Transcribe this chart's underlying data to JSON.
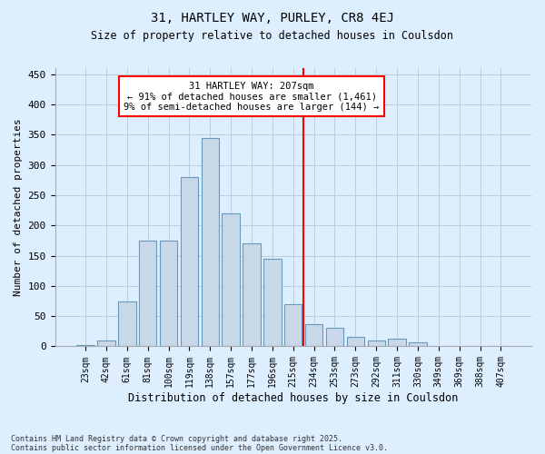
{
  "title1": "31, HARTLEY WAY, PURLEY, CR8 4EJ",
  "title2": "Size of property relative to detached houses in Coulsdon",
  "xlabel": "Distribution of detached houses by size in Coulsdon",
  "ylabel": "Number of detached properties",
  "categories": [
    "23sqm",
    "42sqm",
    "61sqm",
    "81sqm",
    "100sqm",
    "119sqm",
    "138sqm",
    "157sqm",
    "177sqm",
    "196sqm",
    "215sqm",
    "234sqm",
    "253sqm",
    "273sqm",
    "292sqm",
    "311sqm",
    "330sqm",
    "349sqm",
    "369sqm",
    "388sqm",
    "407sqm"
  ],
  "values": [
    2,
    10,
    75,
    175,
    175,
    280,
    345,
    220,
    170,
    145,
    70,
    37,
    30,
    15,
    10,
    12,
    6,
    1,
    0,
    0,
    0
  ],
  "bar_color": "#c8d8e8",
  "bar_edge_color": "#6699bb",
  "grid_color": "#bbccdd",
  "bg_color": "#ddeeff",
  "red_line_x": 10.5,
  "annotation_text": "31 HARTLEY WAY: 207sqm\n← 91% of detached houses are smaller (1,461)\n9% of semi-detached houses are larger (144) →",
  "footnote1": "Contains HM Land Registry data © Crown copyright and database right 2025.",
  "footnote2": "Contains public sector information licensed under the Open Government Licence v3.0.",
  "ylim": [
    0,
    460
  ],
  "yticks": [
    0,
    50,
    100,
    150,
    200,
    250,
    300,
    350,
    400,
    450
  ]
}
